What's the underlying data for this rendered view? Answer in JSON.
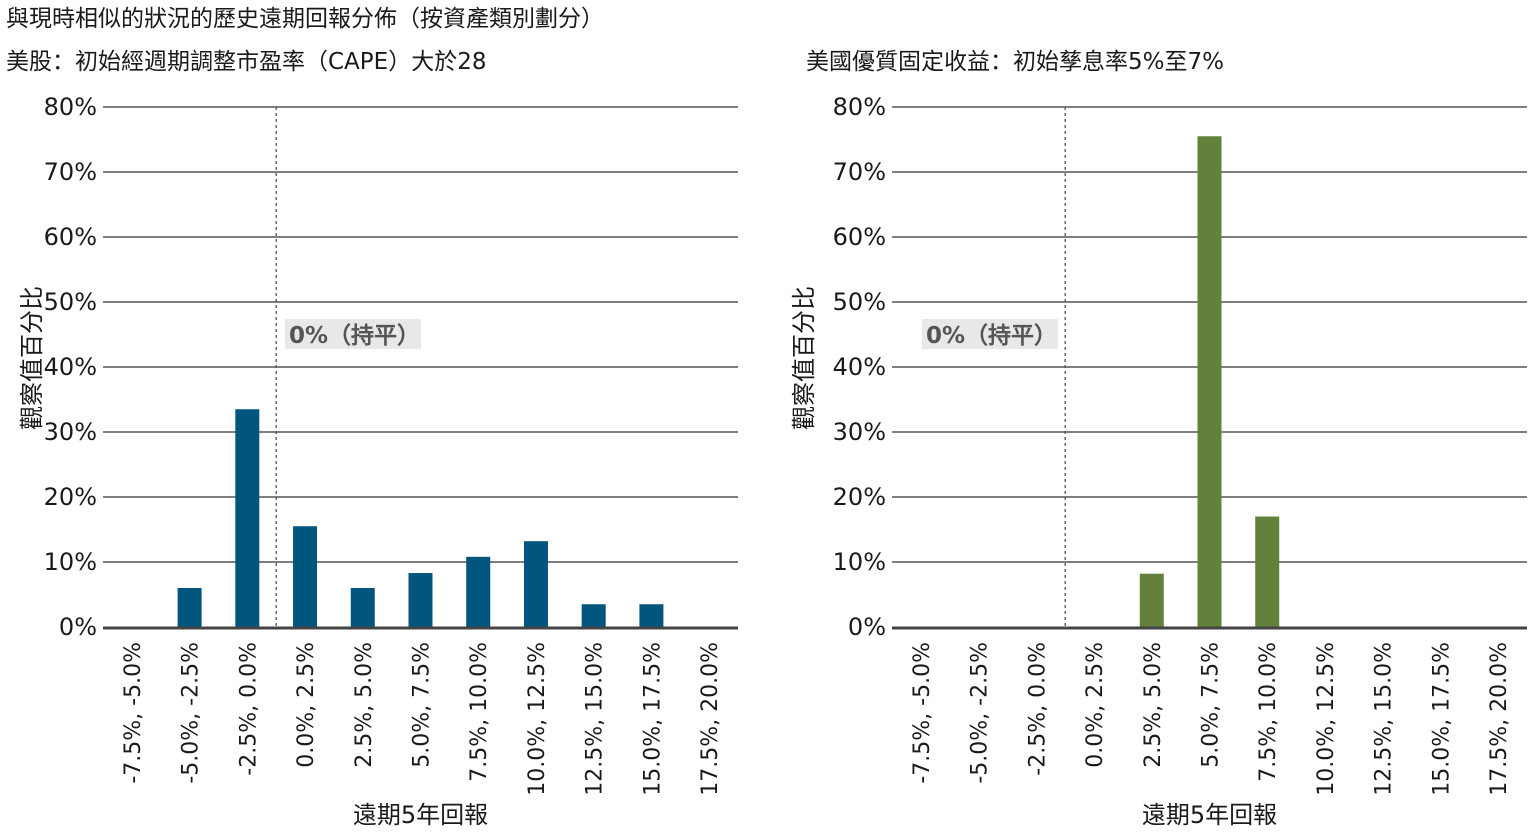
{
  "main_title": "與現時相似的狀況的歷史遠期回報分佈（按資產類別劃分）",
  "colors": {
    "equity": "#00567d",
    "fixed_income": "#62823b",
    "grid": "#555555",
    "annotation_bg": "#e8e8e8",
    "annotation_text": "#555555"
  },
  "chart_data": [
    {
      "type": "bar",
      "title": "美股：初始經週期調整市盈率（CAPE）大於28",
      "xlabel": "遠期5年回報",
      "ylabel": "觀察值百分比",
      "ylim": [
        0,
        80
      ],
      "yticks": [
        "0%",
        "10%",
        "20%",
        "30%",
        "40%",
        "50%",
        "60%",
        "70%",
        "80%"
      ],
      "categories": [
        "-7.5%, -5.0%",
        "-5.0%, -2.5%",
        "-2.5%, 0.0%",
        "0.0%, 2.5%",
        "2.5%, 5.0%",
        "5.0%, 7.5%",
        "7.5%, 10.0%",
        "10.0%, 12.5%",
        "12.5%, 15.0%",
        "15.0%, 17.5%",
        "17.5%, 20.0%"
      ],
      "values": [
        0,
        6,
        33.5,
        15.5,
        6,
        8.3,
        10.8,
        13.2,
        3.5,
        3.5,
        0
      ],
      "annotation": "0%（持平）",
      "grid": true
    },
    {
      "type": "bar",
      "title": "美國優質固定收益：初始孳息率5%至7%",
      "xlabel": "遠期5年回報",
      "ylabel": "觀察值百分比",
      "ylim": [
        0,
        80
      ],
      "yticks": [
        "0%",
        "10%",
        "20%",
        "30%",
        "40%",
        "50%",
        "60%",
        "70%",
        "80%"
      ],
      "categories": [
        "-7.5%, -5.0%",
        "-5.0%, -2.5%",
        "-2.5%, 0.0%",
        "0.0%, 2.5%",
        "2.5%, 5.0%",
        "5.0%, 7.5%",
        "7.5%, 10.0%",
        "10.0%, 12.5%",
        "12.5%, 15.0%",
        "15.0%, 17.5%",
        "17.5%, 20.0%"
      ],
      "values": [
        0,
        0,
        0,
        0,
        8.2,
        75.5,
        17,
        0,
        0,
        0,
        0
      ],
      "annotation": "0%（持平）",
      "grid": true
    }
  ]
}
